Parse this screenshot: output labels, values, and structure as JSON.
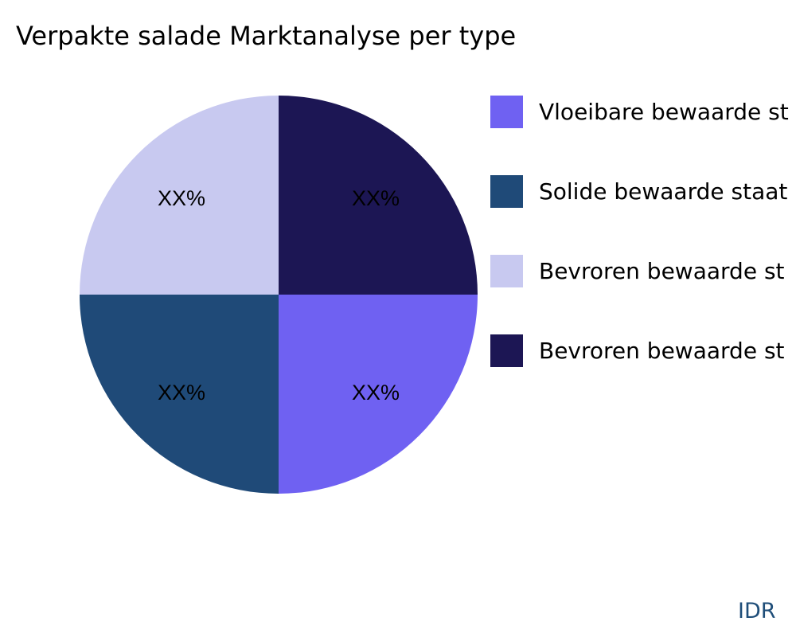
{
  "chart_data": {
    "type": "pie",
    "title": "Verpakte salade Marktanalyse per type",
    "slices": [
      {
        "label": "Vloeibare bewaarde st",
        "value": 25,
        "display": "XX%",
        "color": "#6f61f2"
      },
      {
        "label": "Solide bewaarde staat",
        "value": 25,
        "display": "XX%",
        "color": "#1f4a78"
      },
      {
        "label": "Bevroren bewaarde st",
        "value": 25,
        "display": "XX%",
        "color": "#c8c9f0"
      },
      {
        "label": "Bevroren bewaarde st",
        "value": 25,
        "display": "XX%",
        "color": "#1c1654"
      }
    ],
    "legend_position": "right"
  },
  "watermark": "IDR"
}
